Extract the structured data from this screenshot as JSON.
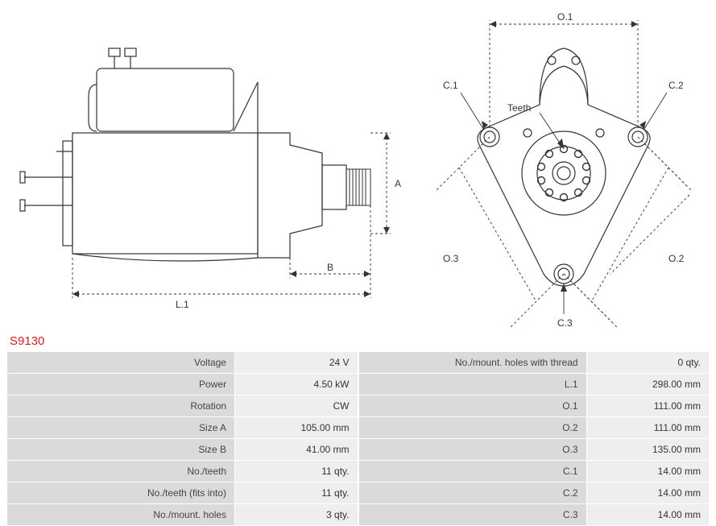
{
  "part_number": "S9130",
  "diagram_left": {
    "dim_A": "A",
    "dim_B": "B",
    "dim_L1": "L.1"
  },
  "diagram_right": {
    "dim_O1": "O.1",
    "dim_O2": "O.2",
    "dim_O3": "O.3",
    "dim_C1": "C.1",
    "dim_C2": "C.2",
    "dim_C3": "C.3",
    "teeth_label": "Teeth"
  },
  "specs_left": [
    {
      "label": "Voltage",
      "value": "24 V"
    },
    {
      "label": "Power",
      "value": "4.50 kW"
    },
    {
      "label": "Rotation",
      "value": "CW"
    },
    {
      "label": "Size A",
      "value": "105.00 mm"
    },
    {
      "label": "Size B",
      "value": "41.00 mm"
    },
    {
      "label": "No./teeth",
      "value": "11 qty."
    },
    {
      "label": "No./teeth (fits into)",
      "value": "11 qty."
    },
    {
      "label": "No./mount. holes",
      "value": "3 qty."
    }
  ],
  "specs_right": [
    {
      "label": "No./mount. holes with thread",
      "value": "0 qty."
    },
    {
      "label": "L.1",
      "value": "298.00 mm"
    },
    {
      "label": "O.1",
      "value": "111.00 mm"
    },
    {
      "label": "O.2",
      "value": "111.00 mm"
    },
    {
      "label": "O.3",
      "value": "135.00 mm"
    },
    {
      "label": "C.1",
      "value": "14.00 mm"
    },
    {
      "label": "C.2",
      "value": "14.00 mm"
    },
    {
      "label": "C.3",
      "value": "14.00 mm"
    }
  ],
  "style": {
    "stroke": "#333333",
    "stroke_width": 1.2,
    "dash": "3,3",
    "label_color": "#d02020",
    "table_label_bg": "#dadada",
    "table_value_bg": "#eeeeee",
    "font_size": 12
  }
}
